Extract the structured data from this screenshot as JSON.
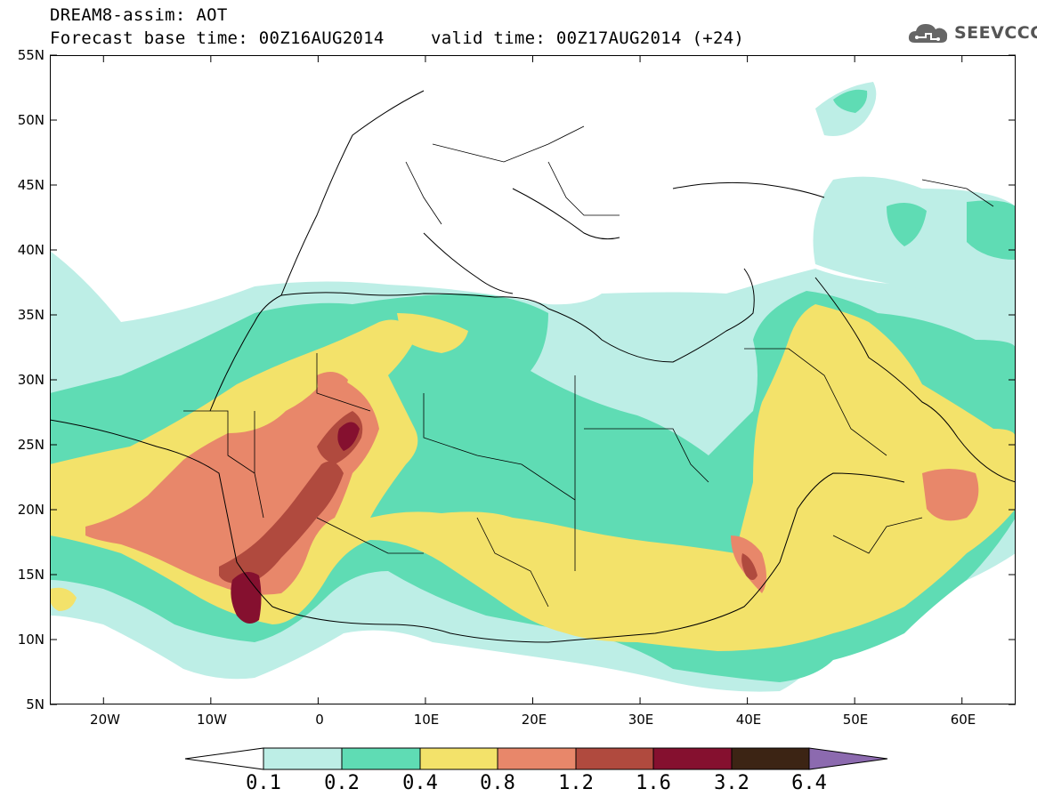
{
  "header": {
    "title": "DREAM8-assim: AOT",
    "base_time": "Forecast base time: 00Z16AUG2014",
    "valid_time": "valid time: 00Z17AUG2014 (+24)"
  },
  "logo": {
    "text": "SEEVCCC",
    "icon": "cloud-icon"
  },
  "map": {
    "variable": "AOT",
    "lon_range": [
      -25,
      65
    ],
    "lat_range": [
      5,
      55
    ],
    "lat_labels": [
      "55N",
      "50N",
      "45N",
      "40N",
      "35N",
      "30N",
      "25N",
      "20N",
      "15N",
      "10N",
      "5N"
    ],
    "lon_labels": [
      "20W",
      "10W",
      "0",
      "10E",
      "20E",
      "30E",
      "40E",
      "50E",
      "60E"
    ],
    "colors": {
      "c1": "#bdeee6",
      "c2": "#5fdcb4",
      "c3": "#f3e26a",
      "c4": "#e8876a",
      "c5": "#b04a3e",
      "c6": "#85102f",
      "c7": "#3c2414",
      "over": "#8c6aaf"
    }
  },
  "colorbar": {
    "labels": [
      "0.1",
      "0.2",
      "0.4",
      "0.8",
      "1.2",
      "1.6",
      "3.2",
      "6.4"
    ],
    "colors": [
      "#bdeee6",
      "#5fdcb4",
      "#f3e26a",
      "#e8876a",
      "#b04a3e",
      "#85102f",
      "#3c2414"
    ],
    "over_color": "#8c6aaf",
    "under_color": "#ffffff"
  }
}
